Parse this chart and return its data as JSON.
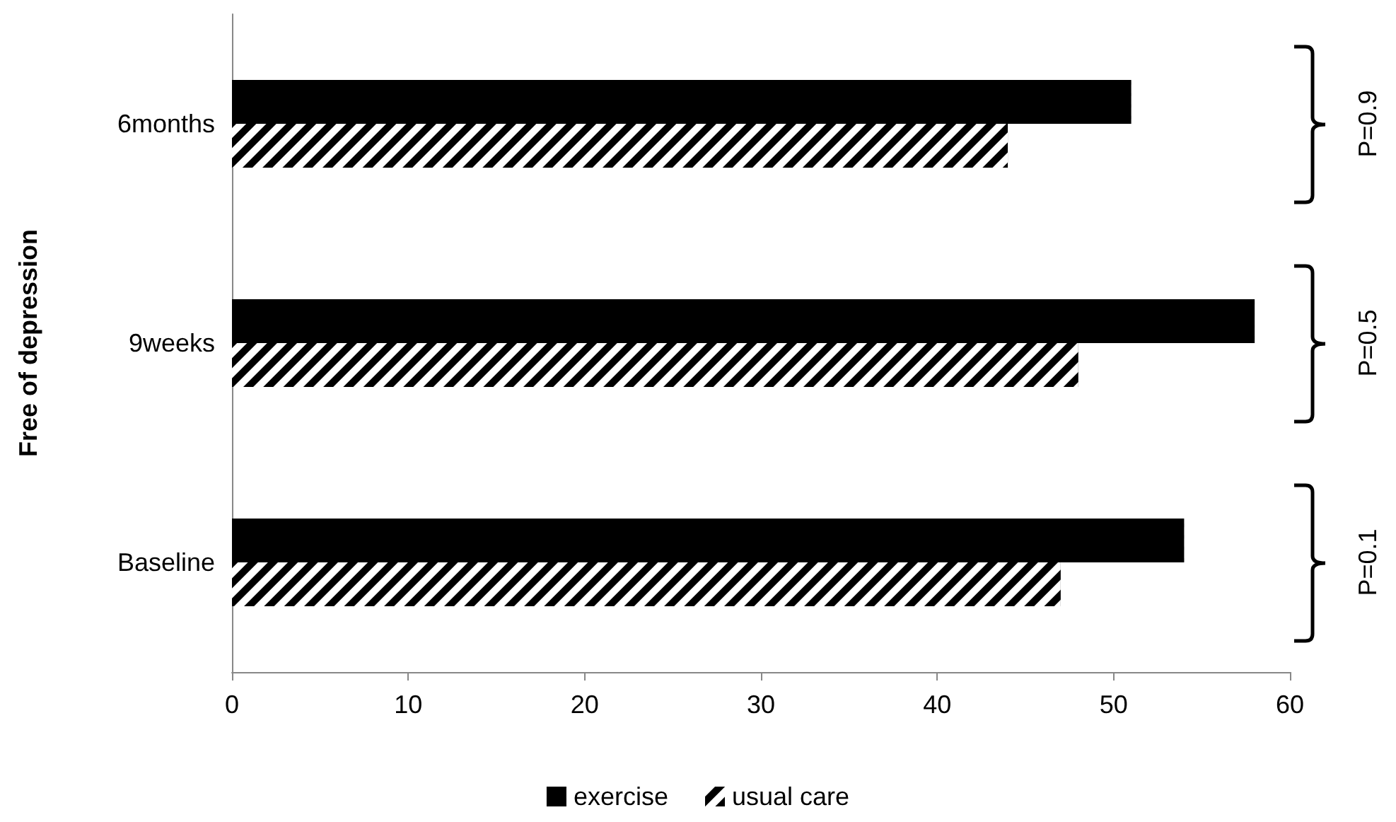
{
  "chart_data": {
    "type": "bar",
    "orientation": "horizontal",
    "ylabel": "Free of depression",
    "categories": [
      "6months",
      "9weeks",
      "Baseline"
    ],
    "series": [
      {
        "name": "exercise",
        "color": "#000000",
        "values": [
          51,
          58,
          54
        ]
      },
      {
        "name": "usual care",
        "color": "#000000",
        "values": [
          44,
          48,
          47
        ]
      }
    ],
    "xlim": [
      0,
      60
    ],
    "xticks": [
      0,
      10,
      20,
      30,
      40,
      50,
      60
    ],
    "grid": false,
    "legend": "bottom",
    "annotations": [
      "P=0.9",
      "P=0.5",
      "P=0.1"
    ]
  }
}
